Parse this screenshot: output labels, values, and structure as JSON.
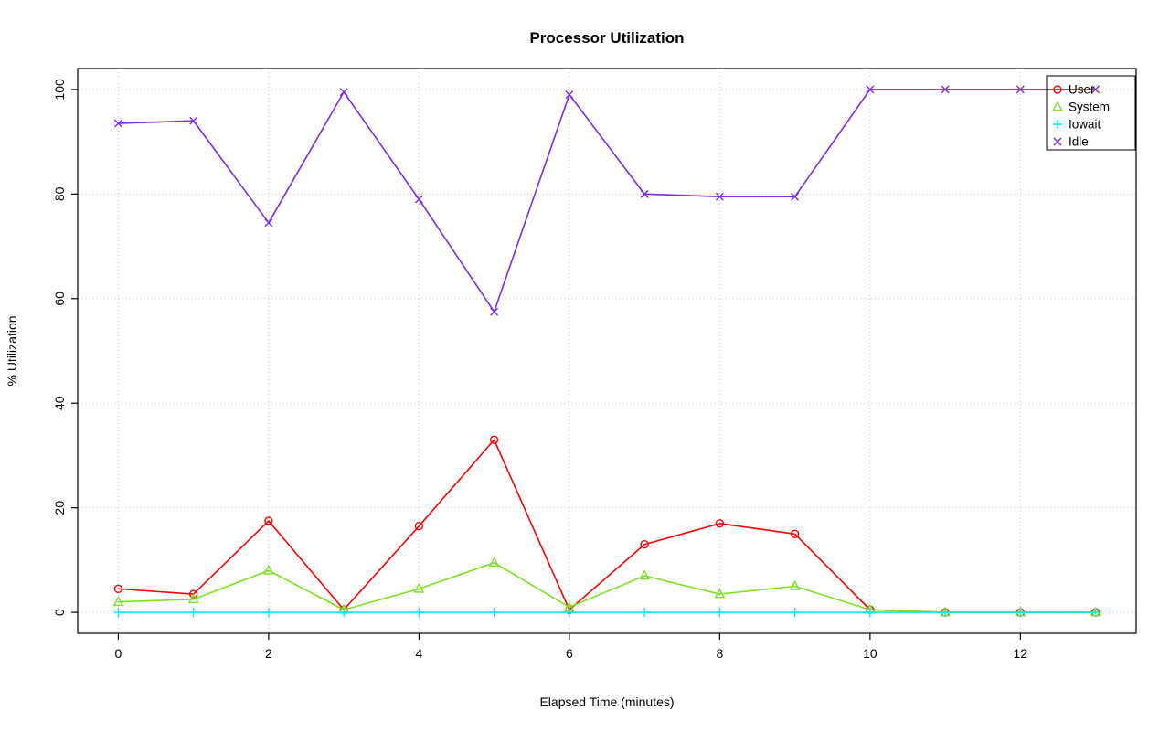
{
  "chart_data": {
    "type": "line",
    "title": "Processor Utilization",
    "xlabel": "Elapsed Time (minutes)",
    "ylabel": "% Utilization",
    "x": [
      0,
      1,
      2,
      3,
      4,
      5,
      6,
      7,
      8,
      9,
      10,
      11,
      12,
      13
    ],
    "series": [
      {
        "name": "User",
        "color": "#FF0000",
        "marker": "circle",
        "values": [
          4.5,
          3.5,
          17.5,
          0.5,
          16.5,
          33,
          0.5,
          13,
          17,
          15,
          0.5,
          0,
          0,
          0
        ]
      },
      {
        "name": "System",
        "color": "#7CE221",
        "marker": "triangle",
        "values": [
          2,
          2.5,
          8,
          0.5,
          4.5,
          9.5,
          1,
          7,
          3.5,
          5,
          0.5,
          0,
          0,
          0
        ]
      },
      {
        "name": "Iowait",
        "color": "#00EEEE",
        "marker": "plus",
        "values": [
          0,
          0,
          0,
          0,
          0,
          0,
          0,
          0,
          0,
          0,
          0,
          0,
          0,
          0
        ]
      },
      {
        "name": "Idle",
        "color": "#7D2AE8",
        "marker": "x",
        "values": [
          93.5,
          94,
          74.5,
          99.5,
          79,
          57.5,
          99,
          80,
          79.5,
          79.5,
          100,
          100,
          100,
          100
        ]
      }
    ],
    "xticks": [
      0,
      2,
      4,
      6,
      8,
      10,
      12
    ],
    "yticks": [
      0,
      20,
      40,
      60,
      80,
      100
    ],
    "xlim": [
      -0.54,
      13.54
    ],
    "ylim": [
      -4,
      104
    ],
    "grid": true,
    "grid_color": "#C8C8C8",
    "legend_position": "topright",
    "legend": [
      "User",
      "System",
      "Iowait",
      "Idle"
    ]
  }
}
